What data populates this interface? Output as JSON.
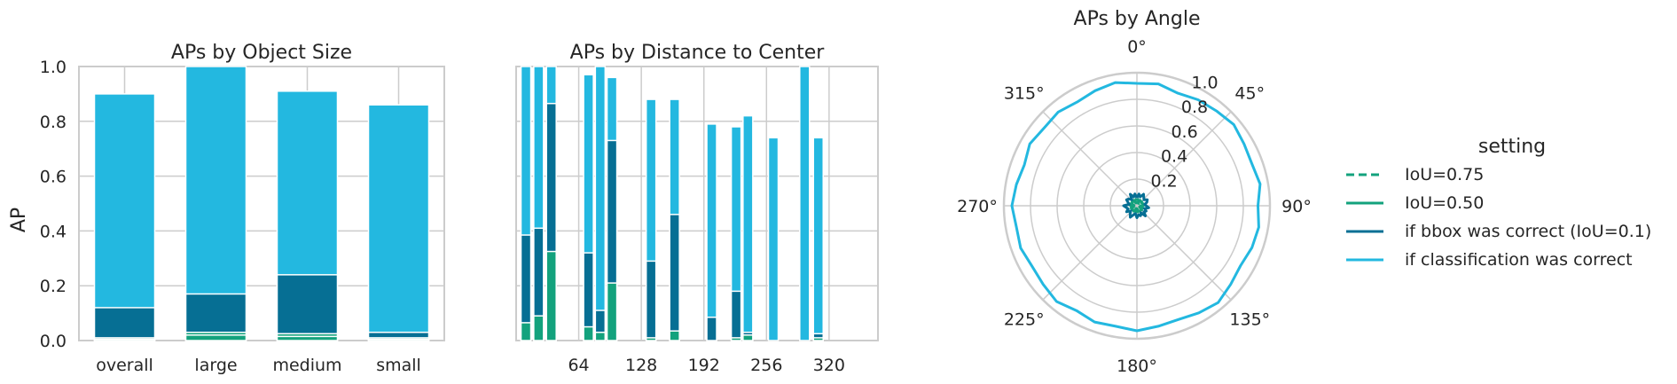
{
  "colors": {
    "iou075": "#13a27d",
    "iou050": "#13a27d",
    "bbox": "#066f94",
    "cls": "#23b8e0",
    "grid": "#cccccc",
    "frame": "#cccccc"
  },
  "legend": {
    "title": "setting",
    "items": [
      {
        "label": "IoU=0.75",
        "color": "#13a27d",
        "dash": true
      },
      {
        "label": "IoU=0.50",
        "color": "#13a27d",
        "dash": false
      },
      {
        "label": "if bbox was correct (IoU=0.1)",
        "color": "#066f94",
        "dash": false
      },
      {
        "label": "if classification was correct",
        "color": "#23b8e0",
        "dash": false
      }
    ]
  },
  "chart_data": [
    {
      "type": "bar",
      "title": "APs by Object Size",
      "ylabel": "AP",
      "xlabel": "",
      "ylim": [
        0,
        1
      ],
      "yticks": [
        "0.0",
        "0.2",
        "0.4",
        "0.6",
        "0.8",
        "1.0"
      ],
      "categories": [
        "overall",
        "large",
        "medium",
        "small"
      ],
      "series": [
        {
          "name": "IoU=0.75",
          "values": [
            0.005,
            0.02,
            0.015,
            0.005
          ]
        },
        {
          "name": "IoU=0.50",
          "values": [
            0.01,
            0.03,
            0.025,
            0.01
          ]
        },
        {
          "name": "if bbox was correct (IoU=0.1)",
          "values": [
            0.12,
            0.17,
            0.24,
            0.03
          ]
        },
        {
          "name": "if classification was correct",
          "values": [
            0.9,
            1.0,
            0.91,
            0.86
          ]
        }
      ]
    },
    {
      "type": "bar",
      "title": "APs by Distance to Center",
      "xlabel": "",
      "ylim": [
        0,
        1
      ],
      "xlim": [
        0,
        370
      ],
      "xticks": [
        64,
        128,
        192,
        256,
        320
      ],
      "bars": [
        {
          "x": 10,
          "iou050": 0.065,
          "bbox": 0.385,
          "cls": 1.0
        },
        {
          "x": 23,
          "iou050": 0.09,
          "bbox": 0.41,
          "cls": 1.0
        },
        {
          "x": 36,
          "iou050": 0.325,
          "bbox": 0.865,
          "cls": 1.0
        },
        {
          "x": 74,
          "iou050": 0.05,
          "bbox": 0.32,
          "cls": 0.97
        },
        {
          "x": 86,
          "iou050": 0.03,
          "bbox": 0.11,
          "cls": 1.0
        },
        {
          "x": 98,
          "iou050": 0.21,
          "bbox": 0.73,
          "cls": 0.96
        },
        {
          "x": 138,
          "iou050": 0.01,
          "bbox": 0.29,
          "cls": 0.88
        },
        {
          "x": 162,
          "iou050": 0.035,
          "bbox": 0.46,
          "cls": 0.88
        },
        {
          "x": 200,
          "iou050": 0.0,
          "bbox": 0.085,
          "cls": 0.79
        },
        {
          "x": 225,
          "iou050": 0.01,
          "bbox": 0.18,
          "cls": 0.78
        },
        {
          "x": 237,
          "iou050": 0.02,
          "bbox": 0.03,
          "cls": 0.82
        },
        {
          "x": 263,
          "iou050": 0.0,
          "bbox": 0.0,
          "cls": 0.74
        },
        {
          "x": 295,
          "iou050": 0.0,
          "bbox": 0.0,
          "cls": 1.0
        },
        {
          "x": 309,
          "iou050": 0.01,
          "bbox": 0.025,
          "cls": 0.74
        }
      ]
    },
    {
      "type": "polar-line",
      "title": "APs by Angle",
      "rlim": [
        0,
        1
      ],
      "rticks": [
        "0.2",
        "0.4",
        "0.6",
        "0.8",
        "1.0"
      ],
      "angle_labels": [
        {
          "deg": 0,
          "label": "0°"
        },
        {
          "deg": 45,
          "label": "45°"
        },
        {
          "deg": 90,
          "label": "90°"
        },
        {
          "deg": 135,
          "label": "135°"
        },
        {
          "deg": 180,
          "label": "180°"
        },
        {
          "deg": 225,
          "label": "225°"
        },
        {
          "deg": 270,
          "label": "270°"
        },
        {
          "deg": 315,
          "label": "315°"
        }
      ],
      "angles": [
        0,
        10,
        20,
        30,
        40,
        50,
        60,
        70,
        80,
        90,
        100,
        110,
        120,
        130,
        140,
        150,
        160,
        170,
        180,
        190,
        200,
        210,
        220,
        230,
        240,
        250,
        260,
        270,
        280,
        290,
        300,
        310,
        320,
        330,
        340,
        350
      ],
      "series": [
        {
          "name": "IoU=0.75",
          "values": [
            0.02,
            0.03,
            0.02,
            0.03,
            0.02,
            0.03,
            0.02,
            0.03,
            0.02,
            0.03,
            0.02,
            0.03,
            0.02,
            0.03,
            0.02,
            0.03,
            0.02,
            0.03,
            0.02,
            0.03,
            0.02,
            0.03,
            0.02,
            0.03,
            0.02,
            0.03,
            0.02,
            0.03,
            0.02,
            0.03,
            0.02,
            0.03,
            0.02,
            0.03,
            0.02,
            0.03
          ]
        },
        {
          "name": "IoU=0.50",
          "values": [
            0.04,
            0.05,
            0.04,
            0.05,
            0.04,
            0.05,
            0.04,
            0.05,
            0.04,
            0.05,
            0.04,
            0.05,
            0.04,
            0.05,
            0.04,
            0.05,
            0.04,
            0.05,
            0.04,
            0.05,
            0.04,
            0.05,
            0.04,
            0.05,
            0.04,
            0.05,
            0.04,
            0.05,
            0.04,
            0.05,
            0.04,
            0.05,
            0.04,
            0.05,
            0.04,
            0.05
          ]
        },
        {
          "name": "if bbox was correct (IoU=0.1)",
          "values": [
            0.06,
            0.09,
            0.07,
            0.1,
            0.08,
            0.07,
            0.09,
            0.08,
            0.06,
            0.07,
            0.09,
            0.06,
            0.08,
            0.07,
            0.1,
            0.06,
            0.08,
            0.07,
            0.09,
            0.06,
            0.07,
            0.1,
            0.08,
            0.06,
            0.09,
            0.07,
            0.08,
            0.1,
            0.06,
            0.07,
            0.09,
            0.08,
            0.06,
            0.1,
            0.07,
            0.09
          ]
        },
        {
          "name": "if classification was correct",
          "values": [
            0.92,
            0.93,
            0.9,
            0.92,
            0.93,
            0.95,
            0.93,
            0.92,
            0.94,
            0.91,
            0.93,
            0.92,
            0.9,
            0.92,
            0.95,
            0.93,
            0.91,
            0.92,
            0.94,
            0.92,
            0.93,
            0.91,
            0.94,
            0.92,
            0.91,
            0.93,
            0.92,
            0.94,
            0.92,
            0.9,
            0.93,
            0.91,
            0.92,
            0.9,
            0.92,
            0.94
          ]
        }
      ]
    }
  ]
}
